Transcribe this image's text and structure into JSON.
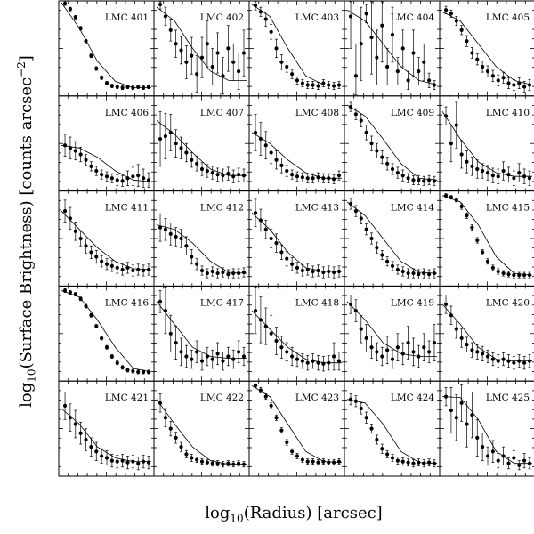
{
  "chart_data": {
    "type": "scatter",
    "layout": "grid-5x5",
    "ylabel": {
      "prefix": "log",
      "sub": "10",
      "main": "(Surface Brightness) [counts arcsec",
      "sup": "−2",
      "end": "]"
    },
    "xlabel": {
      "prefix": "log",
      "sub": "10",
      "main": "(Radius) [arcsec]"
    },
    "panels": [
      {
        "label": "LMC 401",
        "y": [
          0.99,
          0.93,
          0.84,
          0.72,
          0.58,
          0.42,
          0.28,
          0.18,
          0.12,
          0.09,
          0.08,
          0.07,
          0.08,
          0.07,
          0.08,
          0.07,
          0.08
        ],
        "err": [
          0.02,
          0.02,
          0.02,
          0.02,
          0.02,
          0.02,
          0.02,
          0.02,
          0.02,
          0.02,
          0.02,
          0.02,
          0.02,
          0.02,
          0.02,
          0.02,
          0.02
        ],
        "model": [
          1.0,
          0.72,
          0.36,
          0.14,
          0.07,
          0.07
        ]
      },
      {
        "label": "LMC 402",
        "y": [
          0.98,
          0.85,
          0.7,
          0.55,
          0.48,
          0.35,
          0.42,
          0.22,
          0.4,
          0.55,
          0.3,
          0.45,
          0.2,
          0.5,
          0.35,
          0.25,
          0.45
        ],
        "err": [
          0.05,
          0.1,
          0.12,
          0.15,
          0.15,
          0.18,
          0.2,
          0.2,
          0.22,
          0.25,
          0.2,
          0.22,
          0.2,
          0.25,
          0.2,
          0.2,
          0.25
        ],
        "model": [
          0.95,
          0.8,
          0.5,
          0.25,
          0.15,
          0.15
        ]
      },
      {
        "label": "LMC 403",
        "y": [
          0.97,
          0.9,
          0.82,
          0.68,
          0.5,
          0.35,
          0.3,
          0.22,
          0.15,
          0.12,
          0.1,
          0.1,
          0.09,
          0.12,
          0.1,
          0.09,
          0.1
        ],
        "err": [
          0.05,
          0.05,
          0.08,
          0.08,
          0.1,
          0.08,
          0.06,
          0.05,
          0.04,
          0.04,
          0.04,
          0.04,
          0.04,
          0.04,
          0.04,
          0.04,
          0.04
        ],
        "model": [
          0.98,
          0.85,
          0.5,
          0.2,
          0.1,
          0.1
        ]
      },
      {
        "label": "LMC 404",
        "y": [
          0.85,
          0.2,
          0.55,
          0.88,
          0.62,
          0.4,
          0.75,
          0.3,
          0.65,
          0.25,
          0.5,
          0.15,
          0.45,
          0.25,
          0.35,
          0.15,
          0.1
        ],
        "err": [
          0.35,
          0.35,
          0.4,
          0.1,
          0.4,
          0.3,
          0.4,
          0.2,
          0.3,
          0.15,
          0.2,
          0.1,
          0.25,
          0.15,
          0.2,
          0.08,
          0.05
        ],
        "model": [
          0.92,
          0.8,
          0.55,
          0.3,
          0.15,
          0.1
        ]
      },
      {
        "label": "LMC 405",
        "y": [
          0.92,
          0.88,
          0.8,
          0.7,
          0.58,
          0.45,
          0.38,
          0.3,
          0.25,
          0.2,
          0.15,
          0.18,
          0.12,
          0.1,
          0.12,
          0.08,
          0.1
        ],
        "err": [
          0.04,
          0.04,
          0.05,
          0.05,
          0.06,
          0.06,
          0.06,
          0.06,
          0.06,
          0.06,
          0.06,
          0.06,
          0.06,
          0.06,
          0.06,
          0.06,
          0.06
        ],
        "model": [
          0.9,
          0.8,
          0.55,
          0.3,
          0.15,
          0.1
        ]
      },
      {
        "label": "LMC 406",
        "y": [
          0.48,
          0.45,
          0.42,
          0.38,
          0.32,
          0.25,
          0.2,
          0.16,
          0.14,
          0.12,
          0.1,
          0.09,
          0.12,
          0.14,
          0.15,
          0.12,
          0.1
        ],
        "err": [
          0.12,
          0.12,
          0.1,
          0.08,
          0.06,
          0.05,
          0.05,
          0.05,
          0.05,
          0.05,
          0.06,
          0.06,
          0.08,
          0.1,
          0.12,
          0.1,
          0.08
        ],
        "model": [
          0.48,
          0.45,
          0.35,
          0.2,
          0.1,
          0.08
        ]
      },
      {
        "label": "LMC 407",
        "y": [
          0.55,
          0.58,
          0.62,
          0.5,
          0.45,
          0.4,
          0.32,
          0.28,
          0.22,
          0.2,
          0.18,
          0.16,
          0.15,
          0.17,
          0.14,
          0.16,
          0.15
        ],
        "err": [
          0.3,
          0.25,
          0.2,
          0.15,
          0.12,
          0.1,
          0.08,
          0.08,
          0.07,
          0.07,
          0.07,
          0.07,
          0.07,
          0.07,
          0.07,
          0.07,
          0.07
        ],
        "model": [
          0.75,
          0.6,
          0.4,
          0.22,
          0.15,
          0.15
        ]
      },
      {
        "label": "LMC 408",
        "y": [
          0.62,
          0.55,
          0.48,
          0.4,
          0.32,
          0.26,
          0.2,
          0.16,
          0.14,
          0.13,
          0.12,
          0.12,
          0.13,
          0.12,
          0.12,
          0.11,
          0.15
        ],
        "err": [
          0.2,
          0.18,
          0.15,
          0.12,
          0.1,
          0.08,
          0.06,
          0.05,
          0.05,
          0.05,
          0.05,
          0.05,
          0.05,
          0.05,
          0.05,
          0.05,
          0.05
        ],
        "model": [
          0.62,
          0.5,
          0.32,
          0.18,
          0.12,
          0.12
        ]
      },
      {
        "label": "LMC 409",
        "y": [
          0.9,
          0.82,
          0.75,
          0.62,
          0.5,
          0.42,
          0.35,
          0.28,
          0.22,
          0.18,
          0.15,
          0.12,
          0.1,
          0.1,
          0.09,
          0.1,
          0.09
        ],
        "err": [
          0.05,
          0.06,
          0.07,
          0.08,
          0.08,
          0.08,
          0.07,
          0.07,
          0.06,
          0.06,
          0.06,
          0.05,
          0.05,
          0.05,
          0.05,
          0.05,
          0.05
        ],
        "model": [
          0.92,
          0.8,
          0.55,
          0.28,
          0.12,
          0.1
        ]
      },
      {
        "label": "LMC 410",
        "y": [
          0.8,
          0.5,
          0.7,
          0.38,
          0.3,
          0.25,
          0.22,
          0.2,
          0.18,
          0.15,
          0.14,
          0.2,
          0.16,
          0.12,
          0.18,
          0.14,
          0.12
        ],
        "err": [
          0.1,
          0.2,
          0.25,
          0.15,
          0.12,
          0.1,
          0.1,
          0.08,
          0.08,
          0.08,
          0.08,
          0.1,
          0.08,
          0.08,
          0.1,
          0.08,
          0.08
        ],
        "model": [
          0.85,
          0.55,
          0.3,
          0.18,
          0.14,
          0.14
        ]
      },
      {
        "label": "LMC 411",
        "y": [
          0.8,
          0.72,
          0.58,
          0.5,
          0.42,
          0.35,
          0.3,
          0.25,
          0.22,
          0.2,
          0.18,
          0.16,
          0.18,
          0.15,
          0.16,
          0.15,
          0.16
        ],
        "err": [
          0.12,
          0.12,
          0.1,
          0.08,
          0.08,
          0.07,
          0.07,
          0.06,
          0.06,
          0.06,
          0.06,
          0.06,
          0.06,
          0.06,
          0.06,
          0.06,
          0.06
        ],
        "model": [
          0.8,
          0.6,
          0.4,
          0.25,
          0.17,
          0.16
        ]
      },
      {
        "label": "LMC 412",
        "y": [
          0.62,
          0.6,
          0.55,
          0.52,
          0.5,
          0.42,
          0.3,
          0.22,
          0.15,
          0.12,
          0.14,
          0.12,
          0.13,
          0.11,
          0.12,
          0.12,
          0.13
        ],
        "err": [
          0.15,
          0.12,
          0.12,
          0.1,
          0.1,
          0.1,
          0.08,
          0.06,
          0.05,
          0.05,
          0.05,
          0.05,
          0.05,
          0.05,
          0.05,
          0.05,
          0.05
        ],
        "model": [
          0.65,
          0.6,
          0.45,
          0.25,
          0.13,
          0.12
        ]
      },
      {
        "label": "LMC 413",
        "y": [
          0.78,
          0.7,
          0.6,
          0.5,
          0.45,
          0.35,
          0.28,
          0.22,
          0.18,
          0.15,
          0.16,
          0.14,
          0.15,
          0.13,
          0.14,
          0.13,
          0.14
        ],
        "err": [
          0.15,
          0.12,
          0.1,
          0.1,
          0.1,
          0.08,
          0.08,
          0.07,
          0.06,
          0.06,
          0.06,
          0.06,
          0.06,
          0.06,
          0.06,
          0.06,
          0.06
        ],
        "model": [
          0.78,
          0.6,
          0.35,
          0.18,
          0.14,
          0.14
        ]
      },
      {
        "label": "LMC 414",
        "y": [
          0.88,
          0.8,
          0.72,
          0.6,
          0.5,
          0.4,
          0.32,
          0.25,
          0.2,
          0.16,
          0.14,
          0.12,
          0.12,
          0.11,
          0.12,
          0.11,
          0.12
        ],
        "err": [
          0.06,
          0.06,
          0.06,
          0.06,
          0.06,
          0.06,
          0.05,
          0.05,
          0.05,
          0.05,
          0.05,
          0.05,
          0.05,
          0.05,
          0.05,
          0.05,
          0.05
        ],
        "model": [
          0.9,
          0.75,
          0.5,
          0.25,
          0.13,
          0.12
        ]
      },
      {
        "label": "LMC 415",
        "y": [
          0.97,
          0.95,
          0.92,
          0.85,
          0.75,
          0.62,
          0.48,
          0.35,
          0.25,
          0.18,
          0.14,
          0.12,
          0.11,
          0.1,
          0.1,
          0.1,
          0.1
        ],
        "err": [
          0.02,
          0.02,
          0.02,
          0.03,
          0.03,
          0.03,
          0.03,
          0.03,
          0.03,
          0.03,
          0.03,
          0.03,
          0.03,
          0.03,
          0.03,
          0.03,
          0.03
        ],
        "model": [
          0.97,
          0.9,
          0.65,
          0.3,
          0.12,
          0.1
        ]
      },
      {
        "label": "LMC 416",
        "y": [
          0.97,
          0.95,
          0.93,
          0.88,
          0.8,
          0.7,
          0.58,
          0.45,
          0.35,
          0.25,
          0.18,
          0.13,
          0.1,
          0.09,
          0.08,
          0.08,
          0.08
        ],
        "err": [
          0.02,
          0.02,
          0.02,
          0.02,
          0.02,
          0.02,
          0.02,
          0.02,
          0.02,
          0.02,
          0.02,
          0.02,
          0.02,
          0.02,
          0.02,
          0.02,
          0.02
        ],
        "model": [
          0.97,
          0.9,
          0.65,
          0.35,
          0.12,
          0.08
        ]
      },
      {
        "label": "LMC 417",
        "y": [
          0.85,
          0.75,
          0.5,
          0.4,
          0.3,
          0.25,
          0.22,
          0.3,
          0.2,
          0.25,
          0.22,
          0.28,
          0.2,
          0.25,
          0.22,
          0.3,
          0.25
        ],
        "err": [
          0.12,
          0.25,
          0.2,
          0.18,
          0.15,
          0.12,
          0.1,
          0.12,
          0.1,
          0.1,
          0.1,
          0.12,
          0.1,
          0.1,
          0.1,
          0.12,
          0.1
        ],
        "model": [
          0.85,
          0.6,
          0.35,
          0.25,
          0.23,
          0.23
        ]
      },
      {
        "label": "LMC 418",
        "y": [
          0.75,
          0.65,
          0.58,
          0.5,
          0.42,
          0.35,
          0.3,
          0.25,
          0.22,
          0.2,
          0.18,
          0.2,
          0.18,
          0.17,
          0.18,
          0.25,
          0.2
        ],
        "err": [
          0.25,
          0.25,
          0.2,
          0.2,
          0.15,
          0.12,
          0.1,
          0.1,
          0.08,
          0.08,
          0.08,
          0.08,
          0.08,
          0.08,
          0.08,
          0.15,
          0.1
        ],
        "model": [
          0.75,
          0.55,
          0.35,
          0.22,
          0.18,
          0.18
        ]
      },
      {
        "label": "LMC 419",
        "y": [
          0.82,
          0.75,
          0.55,
          0.45,
          0.35,
          0.3,
          0.25,
          0.32,
          0.22,
          0.35,
          0.28,
          0.4,
          0.3,
          0.25,
          0.35,
          0.3,
          0.4
        ],
        "err": [
          0.1,
          0.12,
          0.15,
          0.15,
          0.12,
          0.1,
          0.1,
          0.15,
          0.1,
          0.15,
          0.12,
          0.18,
          0.15,
          0.12,
          0.15,
          0.12,
          0.2
        ],
        "model": [
          0.85,
          0.65,
          0.4,
          0.28,
          0.25,
          0.25
        ]
      },
      {
        "label": "LMC 420",
        "y": [
          0.82,
          0.7,
          0.55,
          0.45,
          0.38,
          0.32,
          0.3,
          0.28,
          0.25,
          0.22,
          0.2,
          0.22,
          0.2,
          0.18,
          0.2,
          0.18,
          0.2
        ],
        "err": [
          0.1,
          0.1,
          0.1,
          0.1,
          0.08,
          0.08,
          0.08,
          0.08,
          0.07,
          0.07,
          0.07,
          0.07,
          0.07,
          0.07,
          0.07,
          0.07,
          0.07
        ],
        "model": [
          0.82,
          0.6,
          0.35,
          0.22,
          0.2,
          0.2
        ]
      },
      {
        "label": "LMC 421",
        "y": [
          0.75,
          0.62,
          0.55,
          0.45,
          0.38,
          0.3,
          0.25,
          0.2,
          0.18,
          0.15,
          0.14,
          0.15,
          0.13,
          0.14,
          0.12,
          0.14,
          0.13
        ],
        "err": [
          0.15,
          0.15,
          0.15,
          0.12,
          0.12,
          0.1,
          0.1,
          0.08,
          0.08,
          0.07,
          0.07,
          0.07,
          0.07,
          0.07,
          0.07,
          0.07,
          0.07
        ],
        "model": [
          0.72,
          0.55,
          0.3,
          0.18,
          0.14,
          0.14
        ]
      },
      {
        "label": "LMC 422",
        "y": [
          0.78,
          0.62,
          0.5,
          0.4,
          0.3,
          0.22,
          0.18,
          0.16,
          0.14,
          0.13,
          0.12,
          0.12,
          0.11,
          0.12,
          0.11,
          0.12,
          0.11
        ],
        "err": [
          0.1,
          0.1,
          0.08,
          0.06,
          0.05,
          0.04,
          0.04,
          0.03,
          0.03,
          0.03,
          0.03,
          0.03,
          0.03,
          0.03,
          0.03,
          0.03,
          0.03
        ],
        "model": [
          0.82,
          0.55,
          0.3,
          0.15,
          0.11,
          0.11
        ]
      },
      {
        "label": "LMC 423",
        "y": [
          0.97,
          0.92,
          0.85,
          0.75,
          0.62,
          0.48,
          0.35,
          0.25,
          0.2,
          0.16,
          0.14,
          0.14,
          0.13,
          0.14,
          0.13,
          0.13,
          0.14
        ],
        "err": [
          0.02,
          0.03,
          0.03,
          0.03,
          0.03,
          0.03,
          0.03,
          0.03,
          0.03,
          0.03,
          0.03,
          0.03,
          0.03,
          0.03,
          0.03,
          0.03,
          0.03
        ],
        "model": [
          0.97,
          0.85,
          0.55,
          0.25,
          0.14,
          0.13
        ]
      },
      {
        "label": "LMC 424",
        "y": [
          0.82,
          0.8,
          0.72,
          0.62,
          0.5,
          0.38,
          0.28,
          0.22,
          0.18,
          0.15,
          0.14,
          0.13,
          0.12,
          0.13,
          0.12,
          0.13,
          0.12
        ],
        "err": [
          0.06,
          0.06,
          0.06,
          0.06,
          0.05,
          0.05,
          0.05,
          0.04,
          0.04,
          0.04,
          0.04,
          0.04,
          0.04,
          0.04,
          0.04,
          0.04,
          0.04
        ],
        "model": [
          0.82,
          0.78,
          0.55,
          0.25,
          0.13,
          0.12
        ]
      },
      {
        "label": "LMC 425",
        "y": [
          0.85,
          0.7,
          0.62,
          0.78,
          0.55,
          0.65,
          0.4,
          0.3,
          0.2,
          0.25,
          0.15,
          0.2,
          0.12,
          0.18,
          0.1,
          0.15,
          0.12
        ],
        "err": [
          0.1,
          0.25,
          0.25,
          0.2,
          0.25,
          0.25,
          0.2,
          0.15,
          0.1,
          0.12,
          0.08,
          0.1,
          0.06,
          0.08,
          0.05,
          0.08,
          0.06
        ],
        "model": [
          0.85,
          0.84,
          0.6,
          0.25,
          0.12,
          0.12
        ]
      }
    ]
  }
}
